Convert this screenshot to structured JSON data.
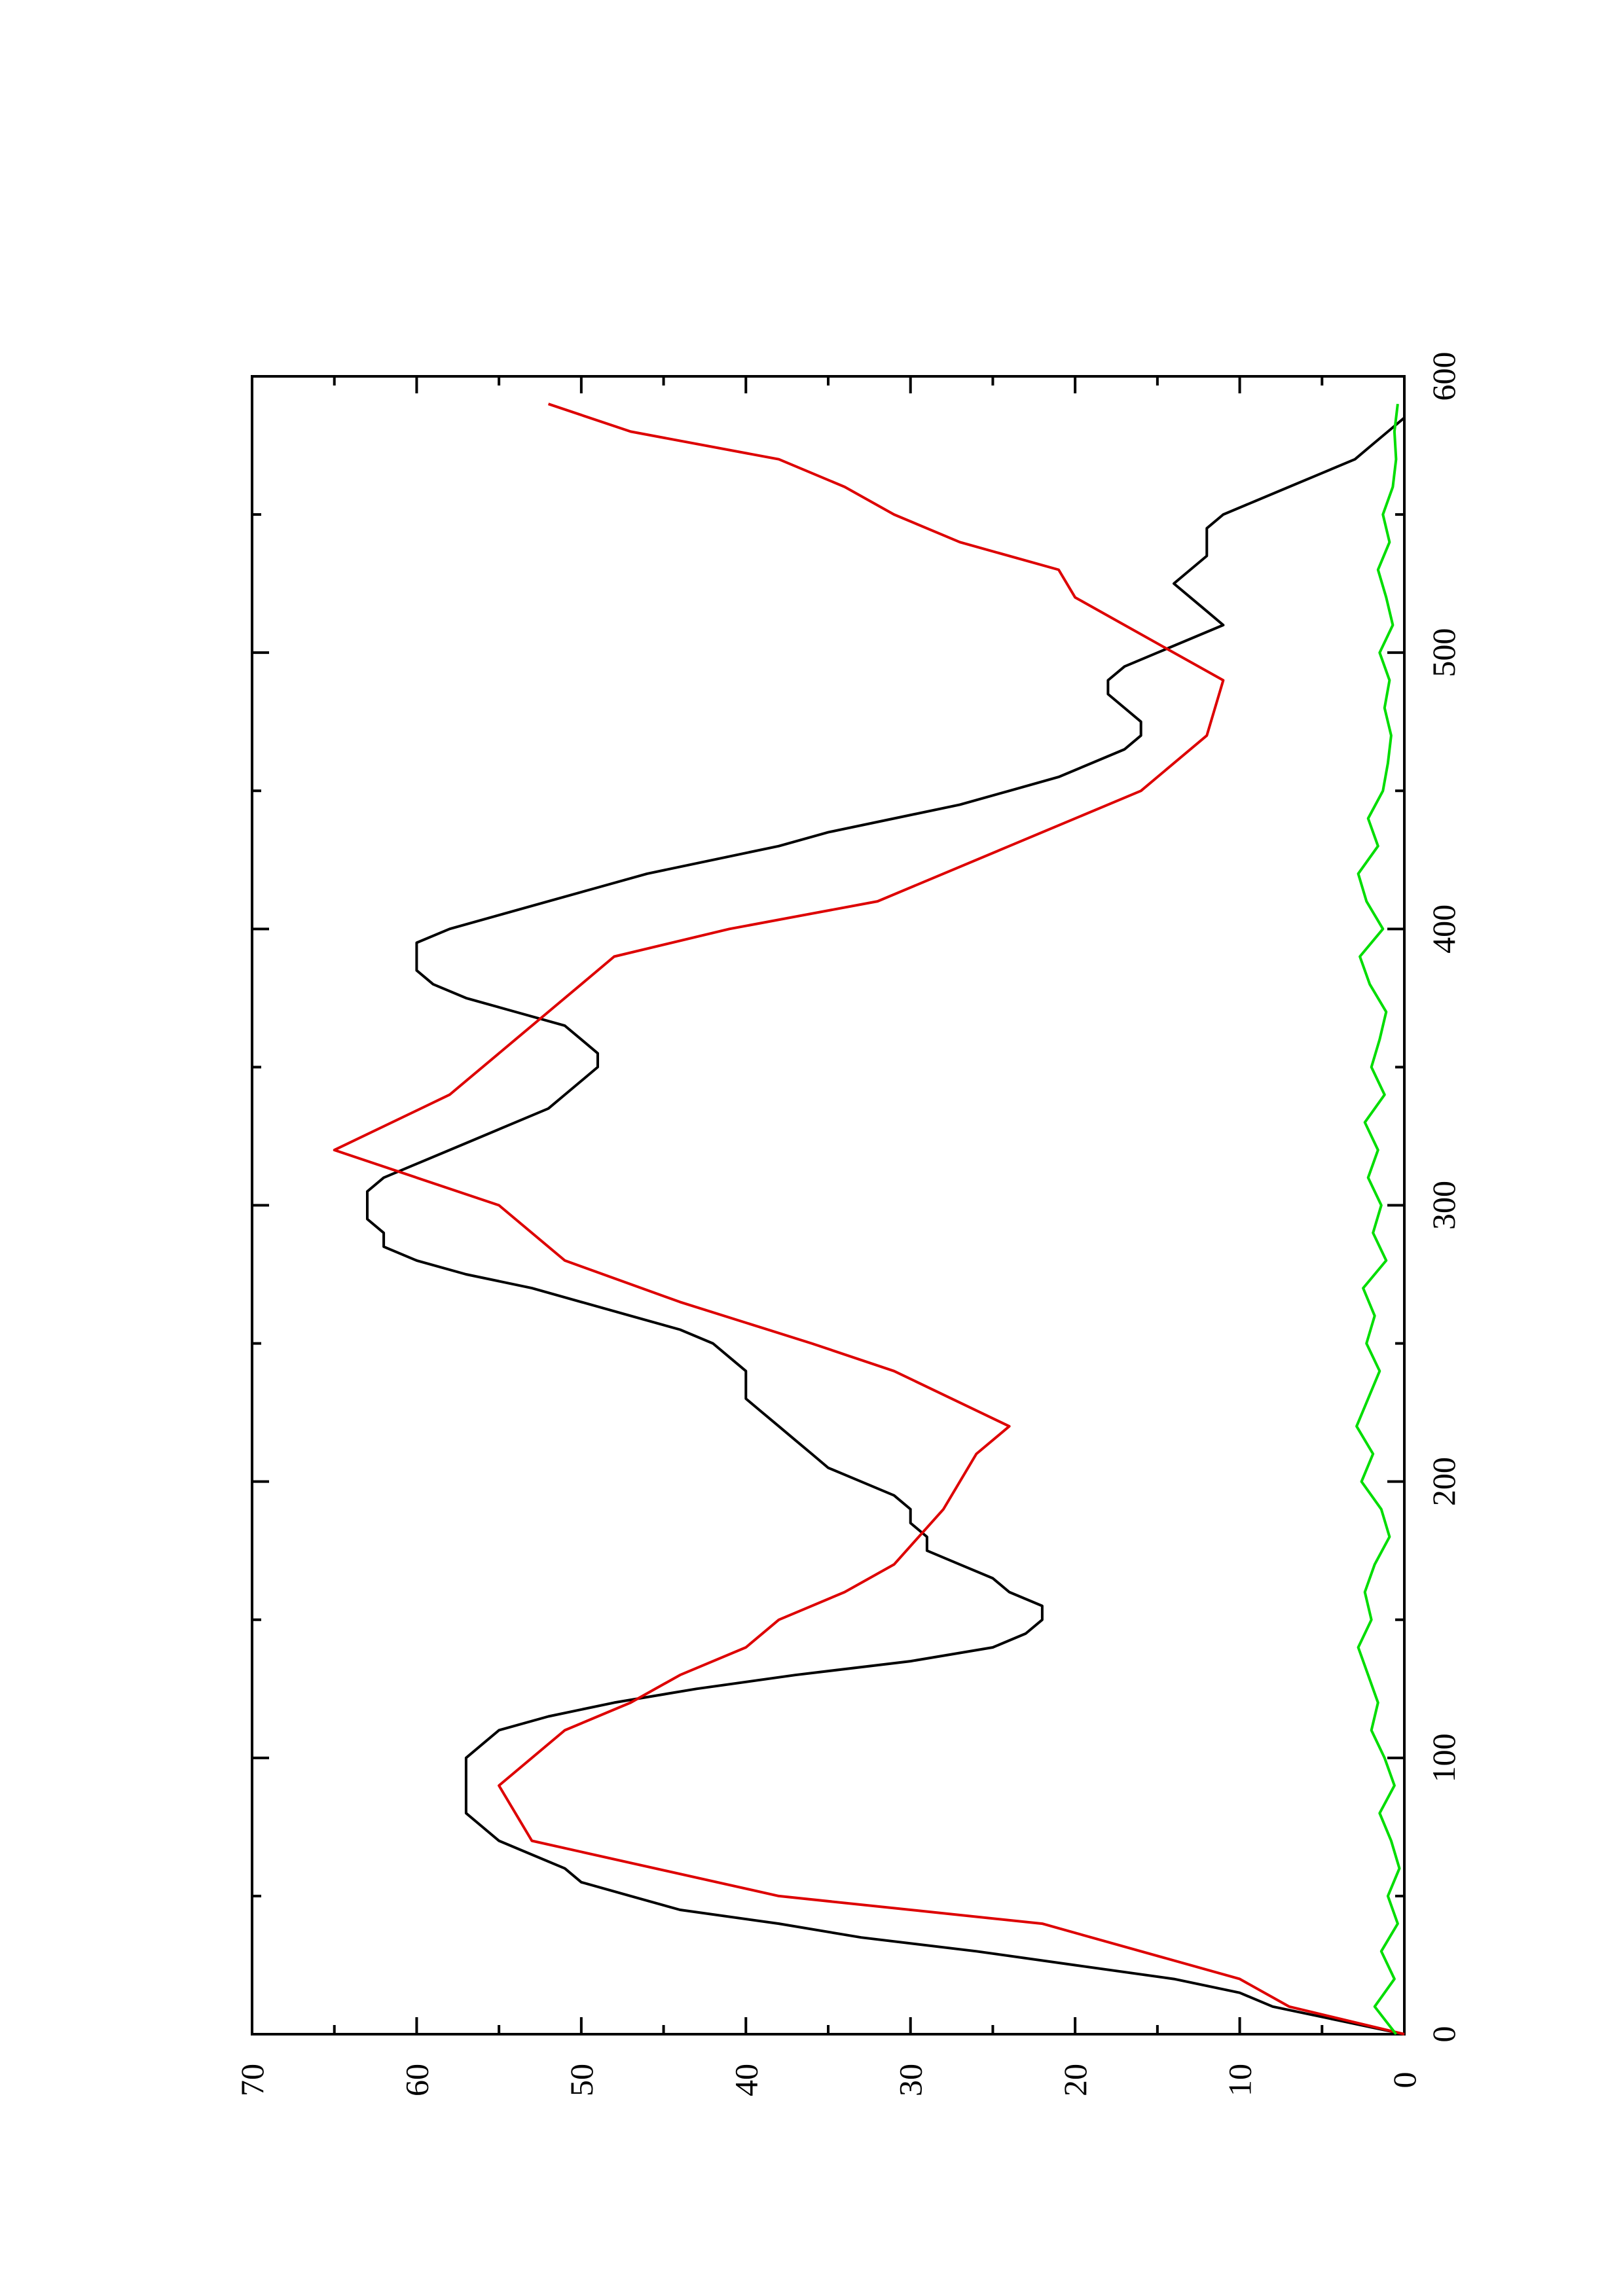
{
  "chart_data": {
    "type": "line",
    "title": "",
    "xlabel": "",
    "ylabel": "",
    "xlim": [
      0,
      600
    ],
    "ylim": [
      0,
      70
    ],
    "x_major_ticks": [
      0,
      100,
      200,
      300,
      400,
      500,
      600
    ],
    "x_major_labels": [
      "0",
      "100",
      "200",
      "300",
      "400",
      "500",
      "600"
    ],
    "x_minor_ticks": [
      50,
      150,
      250,
      350,
      450,
      550
    ],
    "y_major_ticks": [
      0,
      10,
      20,
      30,
      40,
      50,
      60,
      70
    ],
    "y_major_labels": [
      "0",
      "10",
      "20",
      "30",
      "40",
      "50",
      "60",
      "70"
    ],
    "y_minor_ticks": [
      5,
      15,
      25,
      35,
      45,
      55,
      65
    ],
    "grid": false,
    "legend": "none",
    "orientation_note": "figure rotated 90 degrees counterclockwise on the page",
    "series": [
      {
        "color": "#000000",
        "x": [
          0,
          5,
          10,
          15,
          20,
          25,
          30,
          35,
          40,
          45,
          50,
          55,
          60,
          65,
          70,
          75,
          80,
          85,
          90,
          95,
          100,
          105,
          110,
          115,
          120,
          125,
          130,
          135,
          140,
          145,
          150,
          155,
          160,
          165,
          170,
          175,
          180,
          185,
          190,
          195,
          200,
          205,
          210,
          215,
          220,
          225,
          230,
          235,
          240,
          245,
          250,
          255,
          260,
          265,
          270,
          275,
          280,
          285,
          290,
          295,
          300,
          305,
          310,
          315,
          320,
          325,
          330,
          335,
          340,
          345,
          350,
          355,
          360,
          365,
          370,
          375,
          380,
          385,
          390,
          395,
          400,
          405,
          410,
          415,
          420,
          425,
          430,
          435,
          440,
          445,
          450,
          455,
          460,
          465,
          470,
          475,
          480,
          485,
          490,
          495,
          500,
          505,
          510,
          515,
          520,
          525,
          530,
          535,
          540,
          545,
          550,
          555,
          560,
          565,
          570,
          575,
          580,
          585,
          590
        ],
        "y": [
          0,
          4,
          8,
          10,
          14,
          20,
          26,
          33,
          38,
          44,
          47,
          50,
          51,
          53,
          55,
          56,
          57,
          57,
          57,
          57,
          57,
          56,
          55,
          52,
          48,
          43,
          37,
          30,
          25,
          23,
          22,
          22,
          24,
          25,
          27,
          29,
          29,
          30,
          30,
          31,
          33,
          35,
          36,
          37,
          38,
          39,
          40,
          40,
          40,
          41,
          42,
          44,
          47,
          50,
          53,
          57,
          60,
          62,
          62,
          63,
          63,
          63,
          62,
          60,
          58,
          56,
          54,
          52,
          51,
          50,
          49,
          49,
          50,
          51,
          54,
          57,
          59,
          60,
          60,
          60,
          58,
          55,
          52,
          49,
          46,
          42,
          38,
          35,
          31,
          27,
          24,
          21,
          19,
          17,
          16,
          16,
          17,
          18,
          18,
          17,
          15,
          13,
          11,
          12,
          13,
          14,
          13,
          12,
          12,
          12,
          11,
          9,
          7,
          5,
          3,
          2,
          1,
          0,
          0
        ]
      },
      {
        "color": "#dd0000",
        "x": [
          0,
          10,
          10,
          20,
          20,
          40,
          40,
          50,
          50,
          70,
          70,
          90,
          90,
          110,
          110,
          120,
          120,
          130,
          130,
          140,
          140,
          150,
          150,
          160,
          160,
          170,
          170,
          190,
          190,
          210,
          210,
          220,
          220,
          240,
          240,
          250,
          250,
          265,
          265,
          280,
          280,
          300,
          300,
          320,
          320,
          340,
          340,
          360,
          360,
          370,
          370,
          380,
          380,
          390,
          390,
          400,
          400,
          410,
          410,
          430,
          430,
          450,
          450,
          470,
          470,
          490,
          490,
          500,
          500,
          510,
          510,
          520,
          520,
          530,
          530,
          540,
          540,
          550,
          550,
          560,
          560,
          570,
          570,
          580,
          580,
          590
        ],
        "y": [
          0,
          7,
          7,
          10,
          10,
          22,
          22,
          38,
          38,
          53,
          53,
          55,
          55,
          51,
          51,
          47,
          47,
          44,
          44,
          40,
          40,
          38,
          38,
          34,
          34,
          31,
          31,
          28,
          28,
          26,
          26,
          24,
          24,
          31,
          31,
          36,
          36,
          44,
          44,
          51,
          51,
          55,
          55,
          65,
          65,
          58,
          58,
          54,
          54,
          52,
          52,
          50,
          50,
          48,
          48,
          41,
          41,
          32,
          32,
          24,
          24,
          16,
          16,
          12,
          12,
          11,
          11,
          14,
          14,
          17,
          17,
          20,
          20,
          21,
          21,
          27,
          27,
          31,
          31,
          34,
          34,
          38,
          38,
          47,
          47,
          52
        ]
      },
      {
        "color": "#00dd00",
        "x": [
          0,
          10,
          20,
          30,
          40,
          50,
          60,
          70,
          80,
          90,
          100,
          110,
          120,
          130,
          140,
          150,
          160,
          170,
          180,
          190,
          200,
          210,
          220,
          230,
          240,
          250,
          260,
          270,
          280,
          290,
          300,
          310,
          320,
          330,
          340,
          350,
          360,
          370,
          380,
          390,
          400,
          410,
          420,
          430,
          440,
          450,
          460,
          470,
          480,
          490,
          500,
          510,
          520,
          530,
          540,
          550,
          560,
          570,
          580,
          590
        ],
        "y": [
          0.5,
          1.8,
          0.6,
          1.4,
          0.4,
          1.0,
          0.3,
          0.8,
          1.5,
          0.6,
          1.2,
          2.0,
          1.6,
          2.2,
          2.8,
          2.0,
          2.4,
          1.8,
          0.9,
          1.4,
          2.6,
          1.9,
          2.9,
          2.2,
          1.5,
          2.3,
          1.8,
          2.5,
          1.1,
          1.9,
          1.4,
          2.2,
          1.6,
          2.4,
          1.2,
          2.0,
          1.5,
          1.1,
          2.1,
          2.7,
          1.3,
          2.3,
          2.8,
          1.6,
          2.2,
          1.3,
          1.0,
          0.8,
          1.2,
          0.9,
          1.5,
          0.7,
          1.1,
          1.6,
          0.9,
          1.3,
          0.7,
          0.5,
          0.6,
          0.4
        ]
      }
    ]
  }
}
